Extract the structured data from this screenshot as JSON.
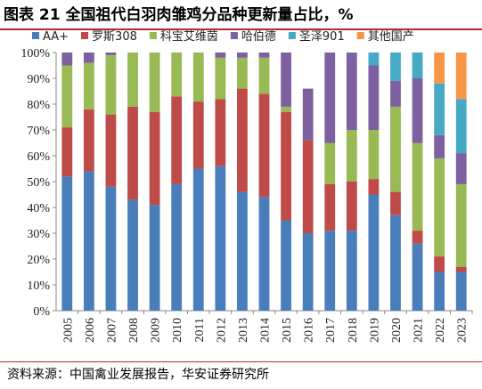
{
  "title": "图表 21  全国祖代白羽肉雏鸡分品种更新量占比，%",
  "source": "资料来源：中国禽业发展报告，华安证券研究所",
  "chart_data": {
    "type": "bar",
    "stacked": true,
    "categories": [
      "2005",
      "2006",
      "2007",
      "2008",
      "2009",
      "2010",
      "2011",
      "2012",
      "2013",
      "2014",
      "2015",
      "2016",
      "2017",
      "2018",
      "2019",
      "2020",
      "2021",
      "2022",
      "2023"
    ],
    "ylim": [
      0,
      100
    ],
    "yticks": [
      "0%",
      "10%",
      "20%",
      "30%",
      "40%",
      "50%",
      "60%",
      "70%",
      "80%",
      "90%",
      "100%"
    ],
    "grid": false,
    "legend_position": "top",
    "series": [
      {
        "name": "AA+",
        "color": "#4a7ebb",
        "values": [
          52,
          54,
          48,
          43,
          41,
          49,
          55,
          56,
          46,
          44,
          35,
          30,
          31,
          31,
          45,
          37,
          26,
          15,
          15
        ]
      },
      {
        "name": "罗斯308",
        "color": "#be4b48",
        "values": [
          19,
          24,
          28,
          36,
          36,
          34,
          26,
          26,
          40,
          40,
          42,
          36,
          18,
          19,
          6,
          9,
          5,
          6,
          2
        ]
      },
      {
        "name": "科宝艾维茵",
        "color": "#98b954",
        "values": [
          24,
          18,
          23,
          21,
          23,
          17,
          19,
          16,
          12,
          14,
          2,
          0,
          16,
          20,
          19,
          33,
          34,
          38,
          32
        ]
      },
      {
        "name": "哈伯德",
        "color": "#7d60a0",
        "values": [
          5,
          4,
          1,
          0,
          0,
          0,
          0,
          2,
          2,
          2,
          21,
          20,
          35,
          30,
          25,
          10,
          25,
          9,
          12
        ]
      },
      {
        "name": "圣泽901",
        "color": "#46aac5",
        "values": [
          0,
          0,
          0,
          0,
          0,
          0,
          0,
          0,
          0,
          0,
          0,
          0,
          0,
          0,
          5,
          11,
          10,
          20,
          21
        ]
      },
      {
        "name": "其他国产",
        "color": "#f79646",
        "values": [
          0,
          0,
          0,
          0,
          0,
          0,
          0,
          0,
          0,
          0,
          0,
          0,
          0,
          0,
          0,
          0,
          0,
          12,
          18
        ]
      }
    ]
  }
}
